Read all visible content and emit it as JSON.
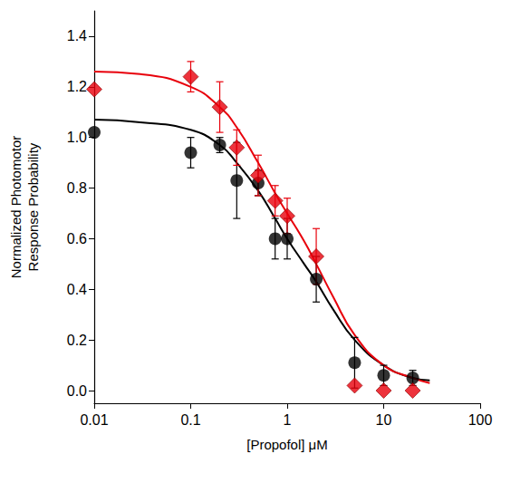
{
  "chart_data": {
    "type": "scatter",
    "xlabel": "[Propofol] μM",
    "ylabel": "Normalized Photomotor Response Probability",
    "log": "x",
    "grid": false,
    "xlim": [
      0.01,
      100
    ],
    "xticks": [
      0.01,
      0.1,
      1,
      10,
      100
    ],
    "ylim": [
      -0.05,
      1.5
    ],
    "yticks": [
      {
        "value": 0,
        "label": "0.0"
      },
      {
        "value": 0.2,
        "label": "0.2"
      },
      {
        "value": 0.4,
        "label": "0.4"
      },
      {
        "value": 0.6,
        "label": "0.6"
      },
      {
        "value": 0.8,
        "label": "0.8"
      },
      {
        "value": 1,
        "label": "1.0"
      },
      {
        "value": 1.2,
        "label": "1.2"
      },
      {
        "value": 1.4,
        "label": "1.4"
      }
    ],
    "series": [
      {
        "type": "line",
        "color": "#000000",
        "line_style": "solid",
        "x": [
          0.01,
          0.03,
          0.1,
          0.2,
          0.3,
          0.5,
          0.75,
          1,
          1.5,
          2,
          3,
          5,
          10,
          20,
          30
        ],
        "values": [
          1.07,
          1.06,
          1.03,
          0.97,
          0.9,
          0.79,
          0.68,
          0.6,
          0.5,
          0.43,
          0.32,
          0.2,
          0.1,
          0.05,
          0.04
        ]
      },
      {
        "type": "line",
        "color": "#e8000b",
        "line_style": "solid",
        "x": [
          0.01,
          0.03,
          0.1,
          0.2,
          0.3,
          0.5,
          0.75,
          1,
          1.5,
          2,
          3,
          5,
          10,
          20,
          30
        ],
        "values": [
          1.26,
          1.25,
          1.2,
          1.12,
          1.04,
          0.9,
          0.78,
          0.7,
          0.59,
          0.5,
          0.37,
          0.22,
          0.1,
          0.05,
          0.03
        ]
      },
      {
        "type": "scatter",
        "color": "#000000",
        "marker": "circle",
        "x": [
          0.01,
          0.1,
          0.2,
          0.3,
          0.5,
          0.75,
          1,
          2,
          5,
          10,
          20
        ],
        "values": [
          1.02,
          0.94,
          0.97,
          0.83,
          0.82,
          0.6,
          0.6,
          0.44,
          0.11,
          0.06,
          0.05
        ],
        "errors": [
          null,
          0.06,
          0.03,
          0.15,
          0.05,
          0.08,
          0.08,
          0.09,
          0.1,
          0.04,
          0.03
        ]
      },
      {
        "type": "scatter",
        "color": "#e8000b",
        "marker": "diamond",
        "x": [
          0.01,
          0.1,
          0.2,
          0.3,
          0.5,
          0.75,
          1,
          2,
          5,
          10,
          20
        ],
        "values": [
          1.19,
          1.24,
          1.12,
          0.96,
          0.85,
          0.75,
          0.69,
          0.53,
          0.02,
          0,
          0
        ],
        "errors": [
          null,
          0.06,
          0.1,
          0.07,
          0.08,
          0.06,
          0.07,
          0.11,
          null,
          null,
          null
        ]
      }
    ]
  }
}
